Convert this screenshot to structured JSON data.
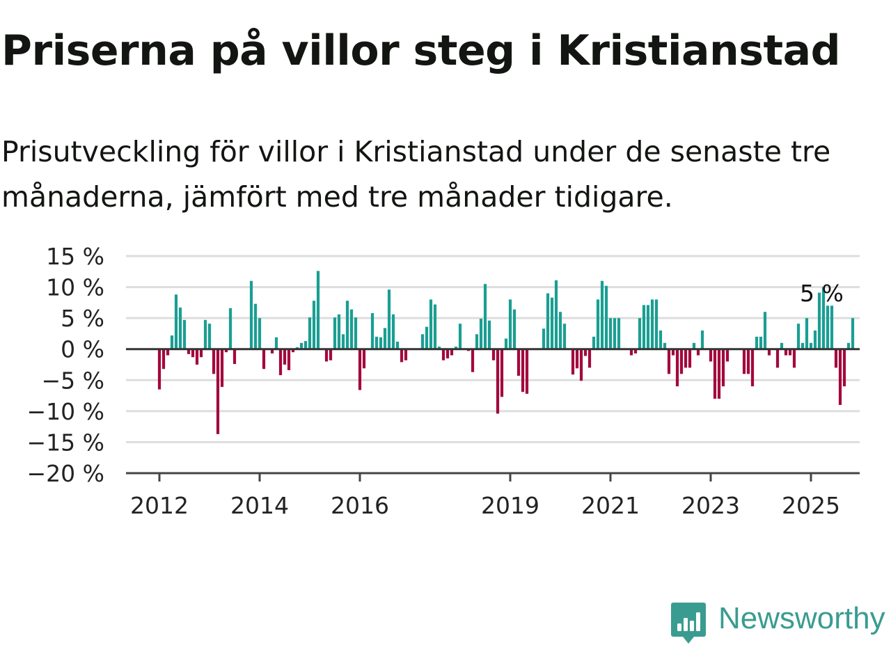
{
  "title": "Priserna på villor steg i Kristianstad",
  "subtitle": "Prisutveckling för villor i Kristianstad under de senaste tre månaderna, jämfört med tre månader tidigare.",
  "brand": {
    "name": "Newsworthy",
    "color": "#3a9c90",
    "icon": "newsworthy-bar-chart-icon"
  },
  "colors": {
    "positive": "#1a9e93",
    "negative": "#a3083d",
    "grid": "#dddddd",
    "axis": "#444444",
    "zero_line": "#333333"
  },
  "chart_data": {
    "type": "bar",
    "title": "Priserna på villor steg i Kristianstad",
    "xlabel": "",
    "ylabel": "",
    "ylim": [
      -20,
      15
    ],
    "y_ticks": [
      15,
      10,
      5,
      0,
      -5,
      -10,
      -15,
      -20
    ],
    "y_tick_labels": [
      "15 %",
      "10 %",
      "5 %",
      "0 %",
      "−5 %",
      "−10 %",
      "−15 %",
      "−20 %"
    ],
    "x_ticks": [
      2012,
      2014,
      2016,
      2019,
      2021,
      2023,
      2025
    ],
    "x_tick_labels": [
      "2012",
      "2014",
      "2016",
      "2019",
      "2021",
      "2023",
      "2025"
    ],
    "start": "2012-01",
    "frequency": "monthly",
    "grid": true,
    "annotation": {
      "text": "5 %",
      "at": "2025-04"
    },
    "values": [
      -6.5,
      -3.2,
      -1.0,
      2.2,
      8.8,
      6.7,
      4.7,
      -0.8,
      -1.3,
      -2.5,
      -1.3,
      4.7,
      4.1,
      -4.0,
      -13.7,
      -6.1,
      -0.5,
      6.6,
      -2.4,
      0,
      0,
      0,
      11.0,
      7.3,
      5.0,
      -3.2,
      0,
      -0.7,
      1.9,
      -4.2,
      -2.5,
      -3.4,
      -0.5,
      0.3,
      1.0,
      1.3,
      5.1,
      7.8,
      12.6,
      0,
      -2.0,
      -1.8,
      5.1,
      5.6,
      2.4,
      7.8,
      6.4,
      5.1,
      -6.6,
      -3.1,
      0,
      5.8,
      2.0,
      1.9,
      3.4,
      9.6,
      5.6,
      1.2,
      -2.1,
      -1.8,
      0,
      0,
      0,
      2.4,
      3.6,
      8.0,
      7.2,
      0.4,
      -1.8,
      -1.5,
      -1.0,
      0.4,
      4.1,
      0,
      -0.3,
      -3.7,
      2.4,
      4.9,
      10.5,
      4.6,
      -1.8,
      -10.4,
      -7.7,
      1.7,
      8.0,
      6.4,
      -4.3,
      -6.9,
      -7.2,
      0,
      0,
      0,
      3.3,
      9.0,
      8.3,
      11.1,
      6.0,
      4.1,
      0,
      -4.1,
      -3.1,
      -5.1,
      -1.1,
      -3.0,
      2.0,
      8.0,
      11.0,
      10.2,
      5.0,
      5.0,
      5.0,
      0,
      0,
      -1.0,
      -0.7,
      5.0,
      7.1,
      7.1,
      8.0,
      8.0,
      3.0,
      1.0,
      -4.0,
      -1.0,
      -6.0,
      -4.0,
      -3.0,
      -3.0,
      1.0,
      -1.0,
      3.0,
      0,
      -2.0,
      -8.0,
      -8.0,
      -6.0,
      -2.0,
      0,
      0,
      0,
      -4.0,
      -4.0,
      -6.0,
      2.0,
      2.0,
      6.0,
      -1.0,
      0,
      -3.0,
      1.0,
      -1.0,
      -1.0,
      -3.0,
      4.1,
      1.0,
      5.0,
      1.0,
      3.0,
      9.1,
      10.0,
      7.0,
      7.0,
      -3.0,
      -9.0,
      -6.0,
      1.0,
      5.0
    ]
  }
}
